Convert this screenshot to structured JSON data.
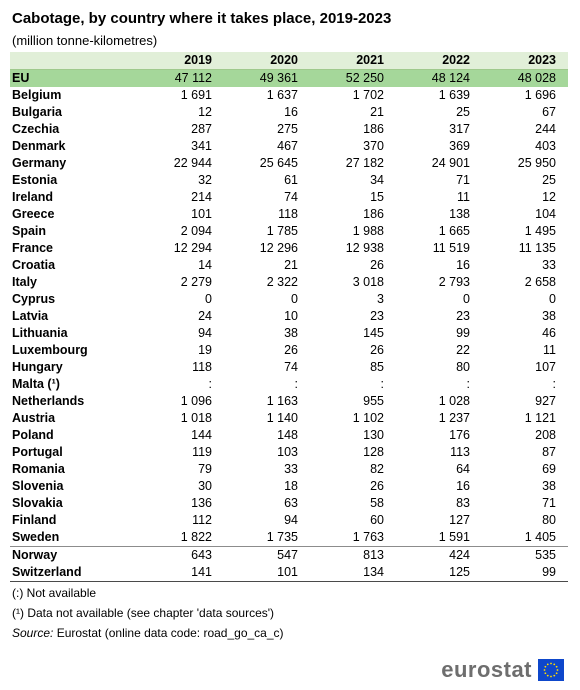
{
  "header": {
    "title": "Cabotage, by country where it takes place, 2019-2023",
    "subtitle": "(million tonne-kilometres)"
  },
  "table": {
    "columns": [
      "2019",
      "2020",
      "2021",
      "2022",
      "2023"
    ],
    "rows": [
      {
        "name": "EU",
        "values": [
          "47 112",
          "49 361",
          "52 250",
          "48 124",
          "48 028"
        ]
      },
      {
        "name": "Belgium",
        "values": [
          "1 691",
          "1 637",
          "1 702",
          "1 639",
          "1 696"
        ]
      },
      {
        "name": "Bulgaria",
        "values": [
          "12",
          "16",
          "21",
          "25",
          "67"
        ]
      },
      {
        "name": "Czechia",
        "values": [
          "287",
          "275",
          "186",
          "317",
          "244"
        ]
      },
      {
        "name": "Denmark",
        "values": [
          "341",
          "467",
          "370",
          "369",
          "403"
        ]
      },
      {
        "name": "Germany",
        "values": [
          "22 944",
          "25 645",
          "27 182",
          "24 901",
          "25 950"
        ]
      },
      {
        "name": "Estonia",
        "values": [
          "32",
          "61",
          "34",
          "71",
          "25"
        ]
      },
      {
        "name": "Ireland",
        "values": [
          "214",
          "74",
          "15",
          "11",
          "12"
        ]
      },
      {
        "name": "Greece",
        "values": [
          "101",
          "118",
          "186",
          "138",
          "104"
        ]
      },
      {
        "name": "Spain",
        "values": [
          "2 094",
          "1 785",
          "1 988",
          "1 665",
          "1 495"
        ]
      },
      {
        "name": "France",
        "values": [
          "12 294",
          "12 296",
          "12 938",
          "11 519",
          "11 135"
        ]
      },
      {
        "name": "Croatia",
        "values": [
          "14",
          "21",
          "26",
          "16",
          "33"
        ]
      },
      {
        "name": "Italy",
        "values": [
          "2 279",
          "2 322",
          "3 018",
          "2 793",
          "2 658"
        ]
      },
      {
        "name": "Cyprus",
        "values": [
          "0",
          "0",
          "3",
          "0",
          "0"
        ]
      },
      {
        "name": "Latvia",
        "values": [
          "24",
          "10",
          "23",
          "23",
          "38"
        ]
      },
      {
        "name": "Lithuania",
        "values": [
          "94",
          "38",
          "145",
          "99",
          "46"
        ]
      },
      {
        "name": "Luxembourg",
        "values": [
          "19",
          "26",
          "26",
          "22",
          "11"
        ]
      },
      {
        "name": "Hungary",
        "values": [
          "118",
          "74",
          "85",
          "80",
          "107"
        ]
      },
      {
        "name": "Malta (¹)",
        "values": [
          ":",
          ":",
          ":",
          ":",
          ":"
        ]
      },
      {
        "name": "Netherlands",
        "values": [
          "1 096",
          "1 163",
          "955",
          "1 028",
          "927"
        ]
      },
      {
        "name": "Austria",
        "values": [
          "1 018",
          "1 140",
          "1 102",
          "1 237",
          "1 121"
        ]
      },
      {
        "name": "Poland",
        "values": [
          "144",
          "148",
          "130",
          "176",
          "208"
        ]
      },
      {
        "name": "Portugal",
        "values": [
          "119",
          "103",
          "128",
          "113",
          "87"
        ]
      },
      {
        "name": "Romania",
        "values": [
          "79",
          "33",
          "82",
          "64",
          "69"
        ]
      },
      {
        "name": "Slovenia",
        "values": [
          "30",
          "18",
          "26",
          "16",
          "38"
        ]
      },
      {
        "name": "Slovakia",
        "values": [
          "136",
          "63",
          "58",
          "83",
          "71"
        ]
      },
      {
        "name": "Finland",
        "values": [
          "112",
          "94",
          "60",
          "127",
          "80"
        ]
      },
      {
        "name": "Sweden",
        "values": [
          "1 822",
          "1 735",
          "1 763",
          "1 591",
          "1 405"
        ]
      },
      {
        "name": "Norway",
        "values": [
          "643",
          "547",
          "813",
          "424",
          "535"
        ]
      },
      {
        "name": "Switzerland",
        "values": [
          "141",
          "101",
          "134",
          "125",
          "99"
        ]
      }
    ]
  },
  "notes": {
    "not_available": "(:) Not available",
    "footnote": "(¹) Data not available (see chapter 'data sources')",
    "source_label": "Source:",
    "source_text": "Eurostat (online data code: road_go_ca_c)"
  },
  "logo": {
    "text": "eurostat",
    "icon": "eu-flag-icon",
    "flag_color": "#0e47cb",
    "star_color": "#ffdd00"
  }
}
